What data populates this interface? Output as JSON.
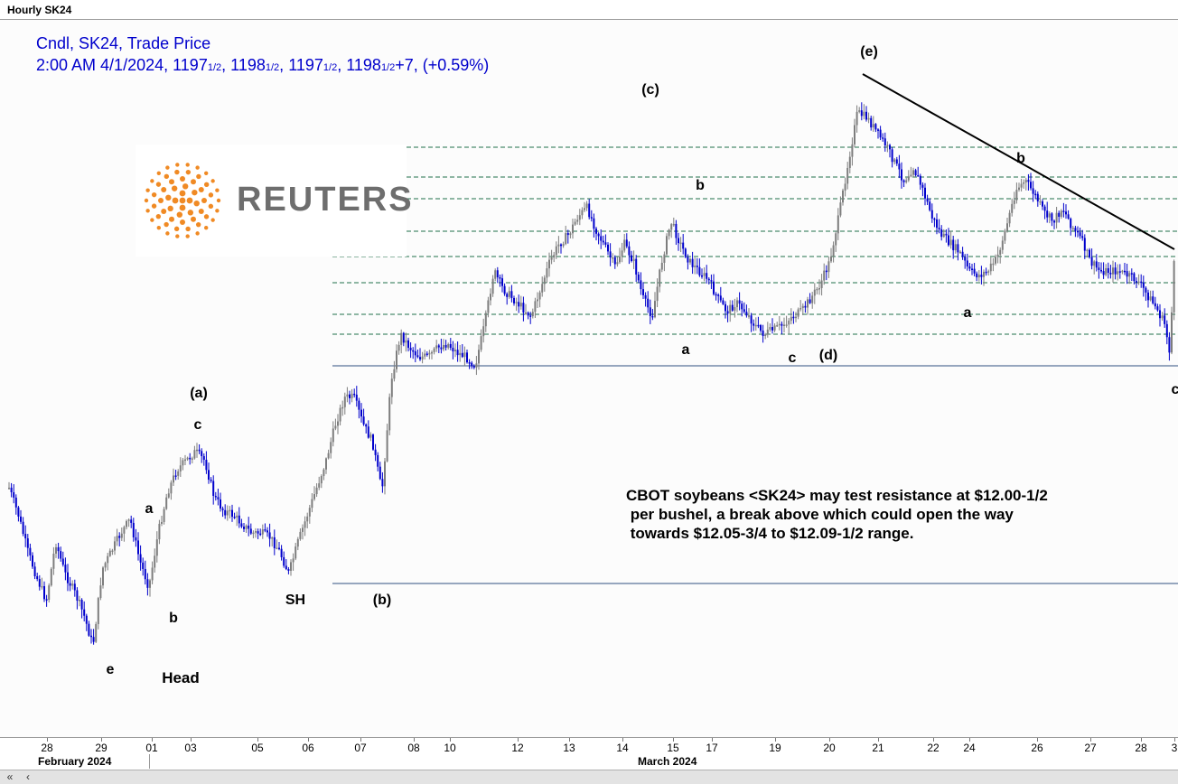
{
  "window": {
    "title": "Hourly SK24"
  },
  "legend": {
    "line1": "Cndl, SK24, Trade Price",
    "time": "2:00 AM 4/1/2024, ",
    "o_int": "1197",
    "o_frac": "1/2",
    "sep1": ", ",
    "h_int": "1198",
    "h_frac": "1/2",
    "sep2": ", ",
    "l_int": "1197",
    "l_frac": "1/2",
    "sep3": ", ",
    "c_int": "1198",
    "c_frac": "1/2",
    "change": "+7, (+0.59%)"
  },
  "logo": {
    "text": "REUTERS",
    "name": "reuters-logo",
    "color": "#f08a24"
  },
  "annotation_text": "CBOT soybeans <SK24> may test resistance at $12.00-1/2\n per bushel, a break above which could open the way\n towards $12.05-3/4 to $12.09-1/2 range.",
  "x_axis": {
    "ticks": [
      "28",
      "29",
      "01",
      "03",
      "05",
      "06",
      "07",
      "08",
      "10",
      "12",
      "13",
      "14",
      "15",
      "17",
      "19",
      "20",
      "21",
      "22",
      "24",
      "26",
      "27",
      "28",
      "3"
    ],
    "months": [
      "February 2024",
      "March 2024"
    ]
  },
  "scrollbar": {
    "left_icon": "double-left-arrow-icon",
    "prev_icon": "left-arrow-icon"
  },
  "colors": {
    "candle_up": "#7d7d7d",
    "candle_down": "#0000cc",
    "legend": "#0000cc",
    "dashed_level": "#1f6f4a",
    "flat_level": "#2f4f7f",
    "trendline": "#000000"
  },
  "chart_data": {
    "type": "candlestick",
    "title": "Hourly SK24",
    "series_name": "Cndl, SK24, Trade Price",
    "x_labels": [
      "28",
      "29",
      "01",
      "03",
      "05",
      "06",
      "07",
      "08",
      "10",
      "12",
      "13",
      "14",
      "15",
      "17",
      "19",
      "20",
      "21",
      "22",
      "24",
      "26",
      "27",
      "28",
      "3"
    ],
    "wave_labels": [
      "(a)",
      "c",
      "a",
      "b",
      "e",
      "Head",
      "SH",
      "(b)",
      "(c)",
      "b",
      "a",
      "c",
      "(d)",
      "(e)",
      "b",
      "a",
      "c"
    ],
    "last_bar": {
      "time": "2:00 AM 4/1/2024",
      "open": 1197.5,
      "high": 1198.5,
      "low": 1197.5,
      "close": 1198.5,
      "change": 7,
      "change_pct": 0.59
    },
    "dashed_levels": 8,
    "horizontal_lines": 2,
    "trendline": "descending from wave (e)",
    "path_points": [
      [
        0,
        540
      ],
      [
        0.8,
        570
      ],
      [
        1.6,
        610
      ],
      [
        2.4,
        640
      ],
      [
        3.2,
        665
      ],
      [
        4.0,
        600
      ],
      [
        4.8,
        635
      ],
      [
        5.6,
        655
      ],
      [
        6.4,
        680
      ],
      [
        7.2,
        715
      ],
      [
        8.0,
        630
      ],
      [
        8.8,
        610
      ],
      [
        9.6,
        590
      ],
      [
        10.4,
        575
      ],
      [
        11.2,
        620
      ],
      [
        12.0,
        650
      ],
      [
        12.8,
        590
      ],
      [
        13.6,
        545
      ],
      [
        14.4,
        520
      ],
      [
        15.2,
        510
      ],
      [
        16.0,
        500
      ],
      [
        16.8,
        510
      ],
      [
        17.6,
        550
      ],
      [
        18.4,
        565
      ],
      [
        19.2,
        570
      ],
      [
        20.0,
        580
      ],
      [
        20.8,
        590
      ],
      [
        21.6,
        590
      ],
      [
        22.4,
        595
      ],
      [
        23.2,
        610
      ],
      [
        24.0,
        635
      ],
      [
        24.8,
        600
      ],
      [
        25.6,
        570
      ],
      [
        26.4,
        540
      ],
      [
        27.2,
        510
      ],
      [
        28.0,
        470
      ],
      [
        28.8,
        440
      ],
      [
        29.6,
        440
      ],
      [
        30.4,
        470
      ],
      [
        31.2,
        490
      ],
      [
        32.0,
        545
      ],
      [
        32.8,
        420
      ],
      [
        33.6,
        370
      ],
      [
        34.4,
        385
      ],
      [
        35.2,
        395
      ],
      [
        36.0,
        395
      ],
      [
        36.8,
        385
      ],
      [
        37.6,
        380
      ],
      [
        38.4,
        390
      ],
      [
        39.2,
        395
      ],
      [
        40.0,
        405
      ],
      [
        40.8,
        360
      ],
      [
        41.6,
        300
      ],
      [
        42.4,
        320
      ],
      [
        43.2,
        330
      ],
      [
        44.0,
        340
      ],
      [
        44.8,
        350
      ],
      [
        45.6,
        320
      ],
      [
        46.4,
        290
      ],
      [
        47.2,
        270
      ],
      [
        48.0,
        260
      ],
      [
        48.8,
        240
      ],
      [
        49.6,
        230
      ],
      [
        50.4,
        255
      ],
      [
        51.2,
        275
      ],
      [
        52.0,
        295
      ],
      [
        52.8,
        270
      ],
      [
        53.6,
        290
      ],
      [
        54.4,
        330
      ],
      [
        55.2,
        350
      ],
      [
        56.0,
        290
      ],
      [
        56.8,
        245
      ],
      [
        57.6,
        270
      ],
      [
        58.4,
        290
      ],
      [
        59.2,
        300
      ],
      [
        60.0,
        310
      ],
      [
        60.8,
        330
      ],
      [
        61.6,
        345
      ],
      [
        62.4,
        335
      ],
      [
        63.2,
        345
      ],
      [
        64.0,
        360
      ],
      [
        64.8,
        370
      ],
      [
        65.6,
        365
      ],
      [
        66.4,
        360
      ],
      [
        67.2,
        350
      ],
      [
        68.0,
        345
      ],
      [
        68.8,
        330
      ],
      [
        69.6,
        315
      ],
      [
        70.4,
        290
      ],
      [
        71.2,
        240
      ],
      [
        72.0,
        180
      ],
      [
        72.8,
        125
      ],
      [
        73.6,
        130
      ],
      [
        74.4,
        145
      ],
      [
        75.2,
        160
      ],
      [
        76.0,
        180
      ],
      [
        76.8,
        200
      ],
      [
        77.6,
        185
      ],
      [
        78.4,
        210
      ],
      [
        79.2,
        240
      ],
      [
        80.0,
        260
      ],
      [
        80.8,
        270
      ],
      [
        81.6,
        280
      ],
      [
        82.4,
        300
      ],
      [
        83.2,
        305
      ],
      [
        84.0,
        300
      ],
      [
        84.8,
        285
      ],
      [
        85.6,
        250
      ],
      [
        86.4,
        210
      ],
      [
        87.2,
        200
      ],
      [
        88.0,
        215
      ],
      [
        88.8,
        235
      ],
      [
        89.6,
        245
      ],
      [
        90.4,
        230
      ],
      [
        91.2,
        250
      ],
      [
        92.0,
        265
      ],
      [
        92.8,
        290
      ],
      [
        93.6,
        300
      ],
      [
        94.4,
        300
      ],
      [
        95.2,
        300
      ],
      [
        96.0,
        305
      ],
      [
        96.8,
        310
      ],
      [
        97.6,
        325
      ],
      [
        98.4,
        340
      ],
      [
        99.2,
        360
      ],
      [
        99.6,
        390
      ],
      [
        100,
        285
      ]
    ]
  }
}
